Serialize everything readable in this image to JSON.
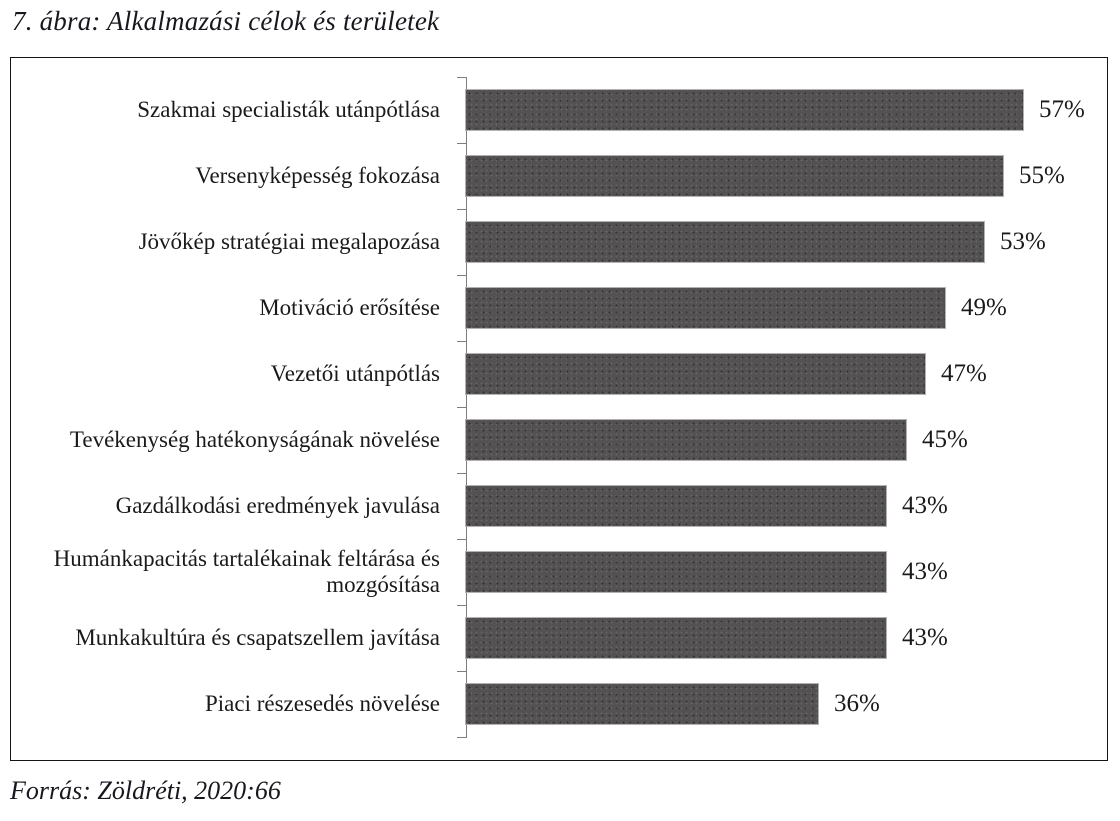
{
  "figure": {
    "title": "7. ábra: Alkalmazási célok és területek",
    "source": "Forrás: Zöldréti, 2020:66"
  },
  "chart_data": {
    "type": "bar",
    "orientation": "horizontal",
    "title": "7. ábra: Alkalmazási célok és területek",
    "xlabel": "",
    "ylabel": "",
    "xlim": [
      0,
      66
    ],
    "grid": false,
    "legend": "none",
    "bar_color": "#545152",
    "axis_color": "#7d7d7d",
    "value_label_position": "right-of-bar",
    "categories": [
      "Szakmai specialisták utánpótlása",
      "Versenyképesség fokozása",
      "Jövőkép stratégiai megalapozása",
      "Motiváció erősítése",
      "Vezetői utánpótlás",
      "Tevékenység hatékonyságának növelése",
      "Gazdálkodási eredmények javulása",
      "Humánkapacitás tartalékainak feltárása és mozgósítása",
      "Munkakultúra és csapatszellem javítása",
      "Piaci részesedés növelése"
    ],
    "values": [
      57,
      55,
      53,
      49,
      47,
      45,
      43,
      43,
      43,
      36
    ],
    "value_labels": [
      "57%",
      "55%",
      "53%",
      "49%",
      "47%",
      "45%",
      "43%",
      "43%",
      "43%",
      "36%"
    ]
  }
}
